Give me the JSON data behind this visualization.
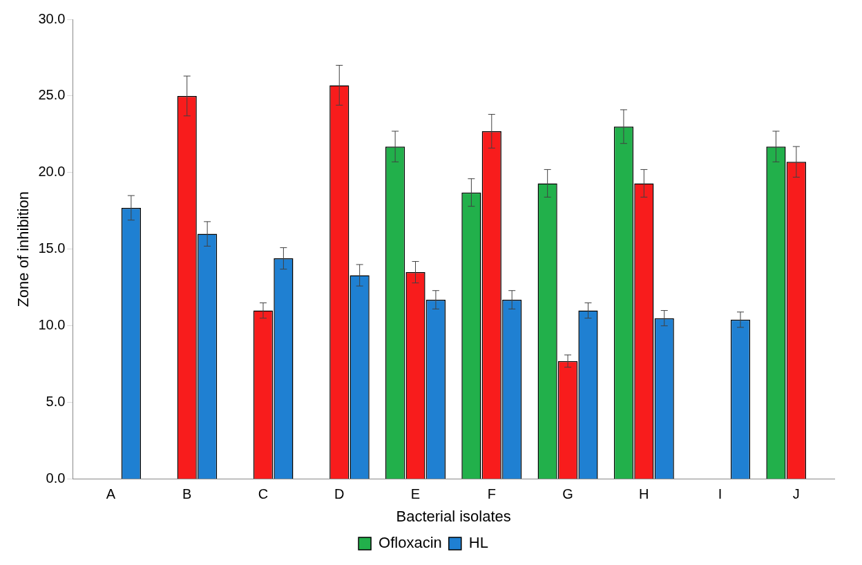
{
  "chart_data": {
    "type": "bar",
    "xlabel": "Bacterial isolates",
    "ylabel": "Zone of inhibition",
    "categories": [
      "A",
      "B",
      "C",
      "D",
      "E",
      "F",
      "G",
      "H",
      "I",
      "J"
    ],
    "series": [
      {
        "name": "Ofloxacin",
        "color": "#22b04b",
        "values": [
          null,
          null,
          null,
          null,
          21.7,
          18.7,
          19.3,
          23.0,
          null,
          21.7
        ],
        "errors": [
          null,
          null,
          null,
          null,
          1.0,
          0.9,
          0.9,
          1.1,
          null,
          1.0
        ]
      },
      {
        "color": "#f81c1c",
        "values": [
          null,
          25.0,
          11.0,
          25.7,
          13.5,
          22.7,
          7.7,
          19.3,
          null,
          20.7
        ],
        "errors": [
          null,
          1.3,
          0.5,
          1.3,
          0.7,
          1.1,
          0.4,
          0.9,
          null,
          1.0
        ]
      },
      {
        "name": "HL",
        "color": "#1f80d2",
        "values": [
          17.7,
          16.0,
          14.4,
          13.3,
          11.7,
          11.7,
          11.0,
          10.5,
          10.4,
          null
        ],
        "errors": [
          0.8,
          0.8,
          0.7,
          0.7,
          0.6,
          0.6,
          0.5,
          0.5,
          0.5,
          null
        ]
      }
    ],
    "ylim": [
      0,
      30
    ],
    "yticks": [
      {
        "value": 0,
        "label": "0.0"
      },
      {
        "value": 5,
        "label": "5.0"
      },
      {
        "value": 10,
        "label": "10.0"
      },
      {
        "value": 15,
        "label": "15.0"
      },
      {
        "value": 20,
        "label": "20.0"
      },
      {
        "value": 25,
        "label": "25.0"
      },
      {
        "value": 30,
        "label": "30.0"
      }
    ],
    "grid": false,
    "legend": "bottom"
  }
}
